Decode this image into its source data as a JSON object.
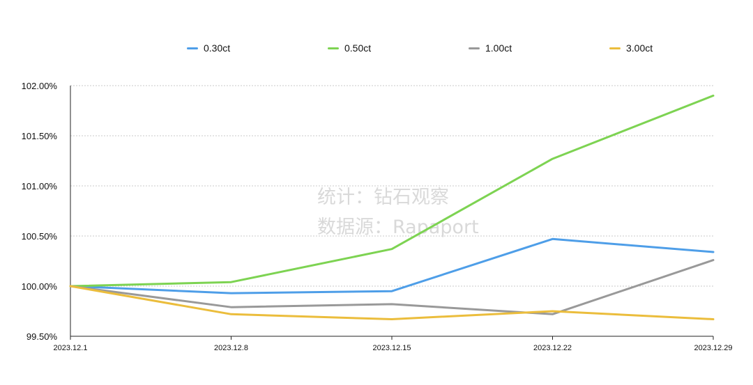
{
  "chart_data": {
    "type": "line",
    "title": "",
    "xlabel": "",
    "ylabel": "",
    "categories": [
      "2023.12.1",
      "2023.12.8",
      "2023.12.15",
      "2023.12.22",
      "2023.12.29"
    ],
    "y_ticks": [
      "99.50%",
      "100.00%",
      "100.50%",
      "101.00%",
      "101.50%",
      "102.00%"
    ],
    "ylim": [
      99.5,
      102.0
    ],
    "grid": true,
    "legend_position": "top",
    "series": [
      {
        "name": "0.30ct",
        "color": "#4e9ee8",
        "values": [
          100.0,
          99.93,
          99.95,
          100.47,
          100.34
        ]
      },
      {
        "name": "0.50ct",
        "color": "#7dd352",
        "values": [
          100.0,
          100.04,
          100.37,
          101.27,
          101.9
        ]
      },
      {
        "name": "1.00ct",
        "color": "#999999",
        "values": [
          100.0,
          99.79,
          99.82,
          99.72,
          100.26
        ]
      },
      {
        "name": "3.00ct",
        "color": "#ebbd3c",
        "values": [
          100.0,
          99.72,
          99.67,
          99.75,
          99.67
        ]
      }
    ],
    "watermark": [
      "统计：钻石观察",
      "数据源：Rapaport"
    ]
  }
}
